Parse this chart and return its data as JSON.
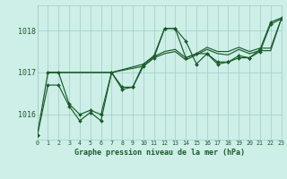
{
  "bg_color": "#ceeee8",
  "grid_color": "#9ecec8",
  "line_color": "#1a5c2a",
  "marker_color": "#1a5c2a",
  "title": "Graphe pression niveau de la mer (hPa)",
  "xlim": [
    0,
    23
  ],
  "ylim": [
    1015.4,
    1018.6
  ],
  "yticks": [
    1016,
    1017,
    1018
  ],
  "xticks": [
    0,
    1,
    2,
    3,
    4,
    5,
    6,
    7,
    8,
    9,
    10,
    11,
    12,
    13,
    14,
    15,
    16,
    17,
    18,
    19,
    20,
    21,
    22,
    23
  ],
  "series": [
    {
      "x": [
        0,
        1,
        2,
        3,
        4,
        5,
        6,
        7,
        8,
        9,
        10,
        11,
        12,
        13,
        14,
        15,
        16,
        17,
        18,
        19,
        20,
        21,
        22,
        23
      ],
      "y": [
        1015.5,
        1016.7,
        1016.7,
        1016.2,
        1015.85,
        1016.05,
        1015.85,
        1017.0,
        1016.6,
        1016.65,
        1017.2,
        1017.4,
        1018.05,
        1018.05,
        1017.75,
        1017.2,
        1017.45,
        1017.2,
        1017.25,
        1017.4,
        1017.35,
        1017.55,
        1018.2,
        1018.3
      ],
      "marker": true
    },
    {
      "x": [
        0,
        1,
        2,
        3,
        4,
        5,
        6,
        7,
        8,
        9,
        10,
        11,
        12,
        13,
        14,
        15,
        16,
        17,
        18,
        19,
        20,
        21,
        22,
        23
      ],
      "y": [
        1015.5,
        1017.0,
        1017.0,
        1016.25,
        1016.0,
        1016.1,
        1016.0,
        1017.0,
        1016.65,
        1016.65,
        1017.15,
        1017.35,
        1018.05,
        1018.05,
        1017.35,
        1017.45,
        1017.45,
        1017.25,
        1017.25,
        1017.35,
        1017.35,
        1017.5,
        1018.15,
        1018.28
      ],
      "marker": true
    },
    {
      "x": [
        1,
        7,
        10,
        11,
        12,
        13,
        14,
        15,
        16,
        17,
        18,
        19,
        20,
        21,
        22,
        23
      ],
      "y": [
        1017.0,
        1017.0,
        1017.2,
        1017.38,
        1017.5,
        1017.55,
        1017.35,
        1017.45,
        1017.6,
        1017.5,
        1017.5,
        1017.6,
        1017.5,
        1017.58,
        1017.58,
        1018.28
      ],
      "marker": false
    },
    {
      "x": [
        1,
        7,
        10,
        11,
        12,
        13,
        14,
        15,
        16,
        17,
        18,
        19,
        20,
        21,
        22,
        23
      ],
      "y": [
        1017.0,
        1017.0,
        1017.15,
        1017.35,
        1017.45,
        1017.5,
        1017.3,
        1017.42,
        1017.55,
        1017.45,
        1017.42,
        1017.55,
        1017.45,
        1017.52,
        1017.52,
        1018.28
      ],
      "marker": false
    }
  ]
}
